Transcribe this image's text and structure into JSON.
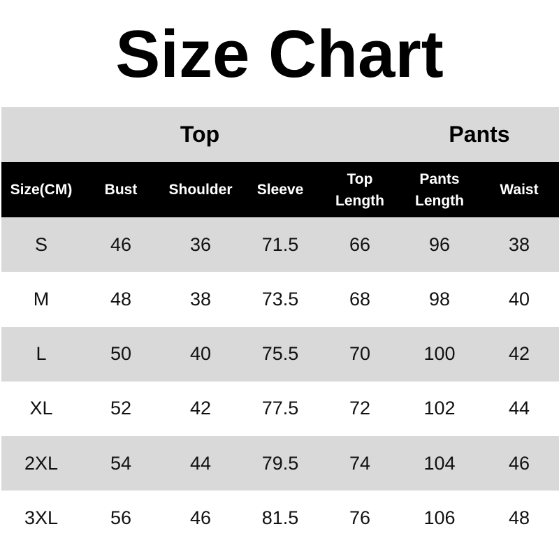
{
  "title": "Size Chart",
  "groups": {
    "top": "Top",
    "pants": "Pants"
  },
  "headers": [
    "Size(CM)",
    "Bust",
    "Shoulder",
    "Sleeve",
    "Top\nLength",
    "Pants\nLength",
    "Waist"
  ],
  "rows": [
    [
      "S",
      "46",
      "36",
      "71.5",
      "66",
      "96",
      "38"
    ],
    [
      "M",
      "48",
      "38",
      "73.5",
      "68",
      "98",
      "40"
    ],
    [
      "L",
      "50",
      "40",
      "75.5",
      "70",
      "100",
      "42"
    ],
    [
      "XL",
      "52",
      "42",
      "77.5",
      "72",
      "102",
      "44"
    ],
    [
      "2XL",
      "54",
      "44",
      "79.5",
      "74",
      "104",
      "46"
    ],
    [
      "3XL",
      "56",
      "46",
      "81.5",
      "76",
      "106",
      "48"
    ]
  ],
  "colors": {
    "band": "#d9d9d9",
    "header": "#000000"
  }
}
